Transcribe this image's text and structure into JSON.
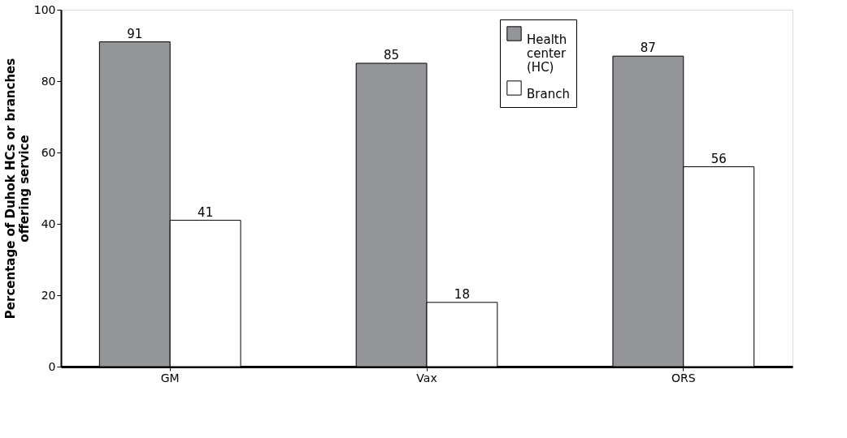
{
  "chart_data": {
    "type": "bar",
    "ylabel": "Percentage of Duhok HCs or branches\noffering service",
    "categories": [
      "GM",
      "Vax",
      "ORS"
    ],
    "series": [
      {
        "name": "Health center (HC)",
        "color": "#939598",
        "values": [
          91,
          85,
          87
        ]
      },
      {
        "name": "Branch",
        "color": "#ffffff",
        "values": [
          41,
          18,
          56
        ]
      }
    ],
    "ylim": [
      0,
      100
    ],
    "yticks": [
      0,
      20,
      40,
      60,
      80,
      100
    ],
    "grid": false,
    "legend": "top",
    "data_labels": true
  }
}
